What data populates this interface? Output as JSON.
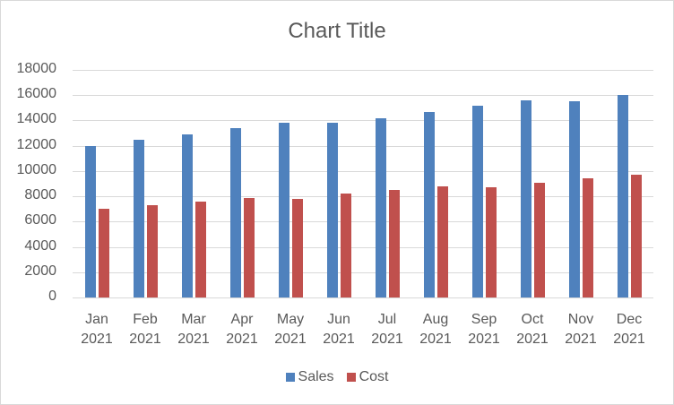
{
  "chart_data": {
    "type": "bar",
    "title": "Chart Title",
    "xlabel": "",
    "ylabel": "",
    "ylim": [
      0,
      18000
    ],
    "yticks": [
      0,
      2000,
      4000,
      6000,
      8000,
      10000,
      12000,
      14000,
      16000,
      18000
    ],
    "grid": true,
    "legend_position": "bottom",
    "categories": [
      "Jan 2021",
      "Feb 2021",
      "Mar 2021",
      "Apr 2021",
      "May 2021",
      "Jun 2021",
      "Jul 2021",
      "Aug 2021",
      "Sep 2021",
      "Oct 2021",
      "Nov 2021",
      "Dec 2021"
    ],
    "category_lines": [
      [
        "Jan",
        "2021"
      ],
      [
        "Feb",
        "2021"
      ],
      [
        "Mar",
        "2021"
      ],
      [
        "Apr",
        "2021"
      ],
      [
        "May",
        "2021"
      ],
      [
        "Jun",
        "2021"
      ],
      [
        "Jul",
        "2021"
      ],
      [
        "Aug",
        "2021"
      ],
      [
        "Sep",
        "2021"
      ],
      [
        "Oct",
        "2021"
      ],
      [
        "Nov",
        "2021"
      ],
      [
        "Dec",
        "2021"
      ]
    ],
    "series": [
      {
        "name": "Sales",
        "color": "#4f81bd",
        "values": [
          12000,
          12500,
          12900,
          13400,
          13800,
          13800,
          14200,
          14700,
          15200,
          15600,
          15500,
          16000
        ]
      },
      {
        "name": "Cost",
        "color": "#c0504d",
        "values": [
          7000,
          7300,
          7600,
          7900,
          7800,
          8200,
          8500,
          8800,
          8700,
          9100,
          9400,
          9700
        ]
      }
    ]
  }
}
